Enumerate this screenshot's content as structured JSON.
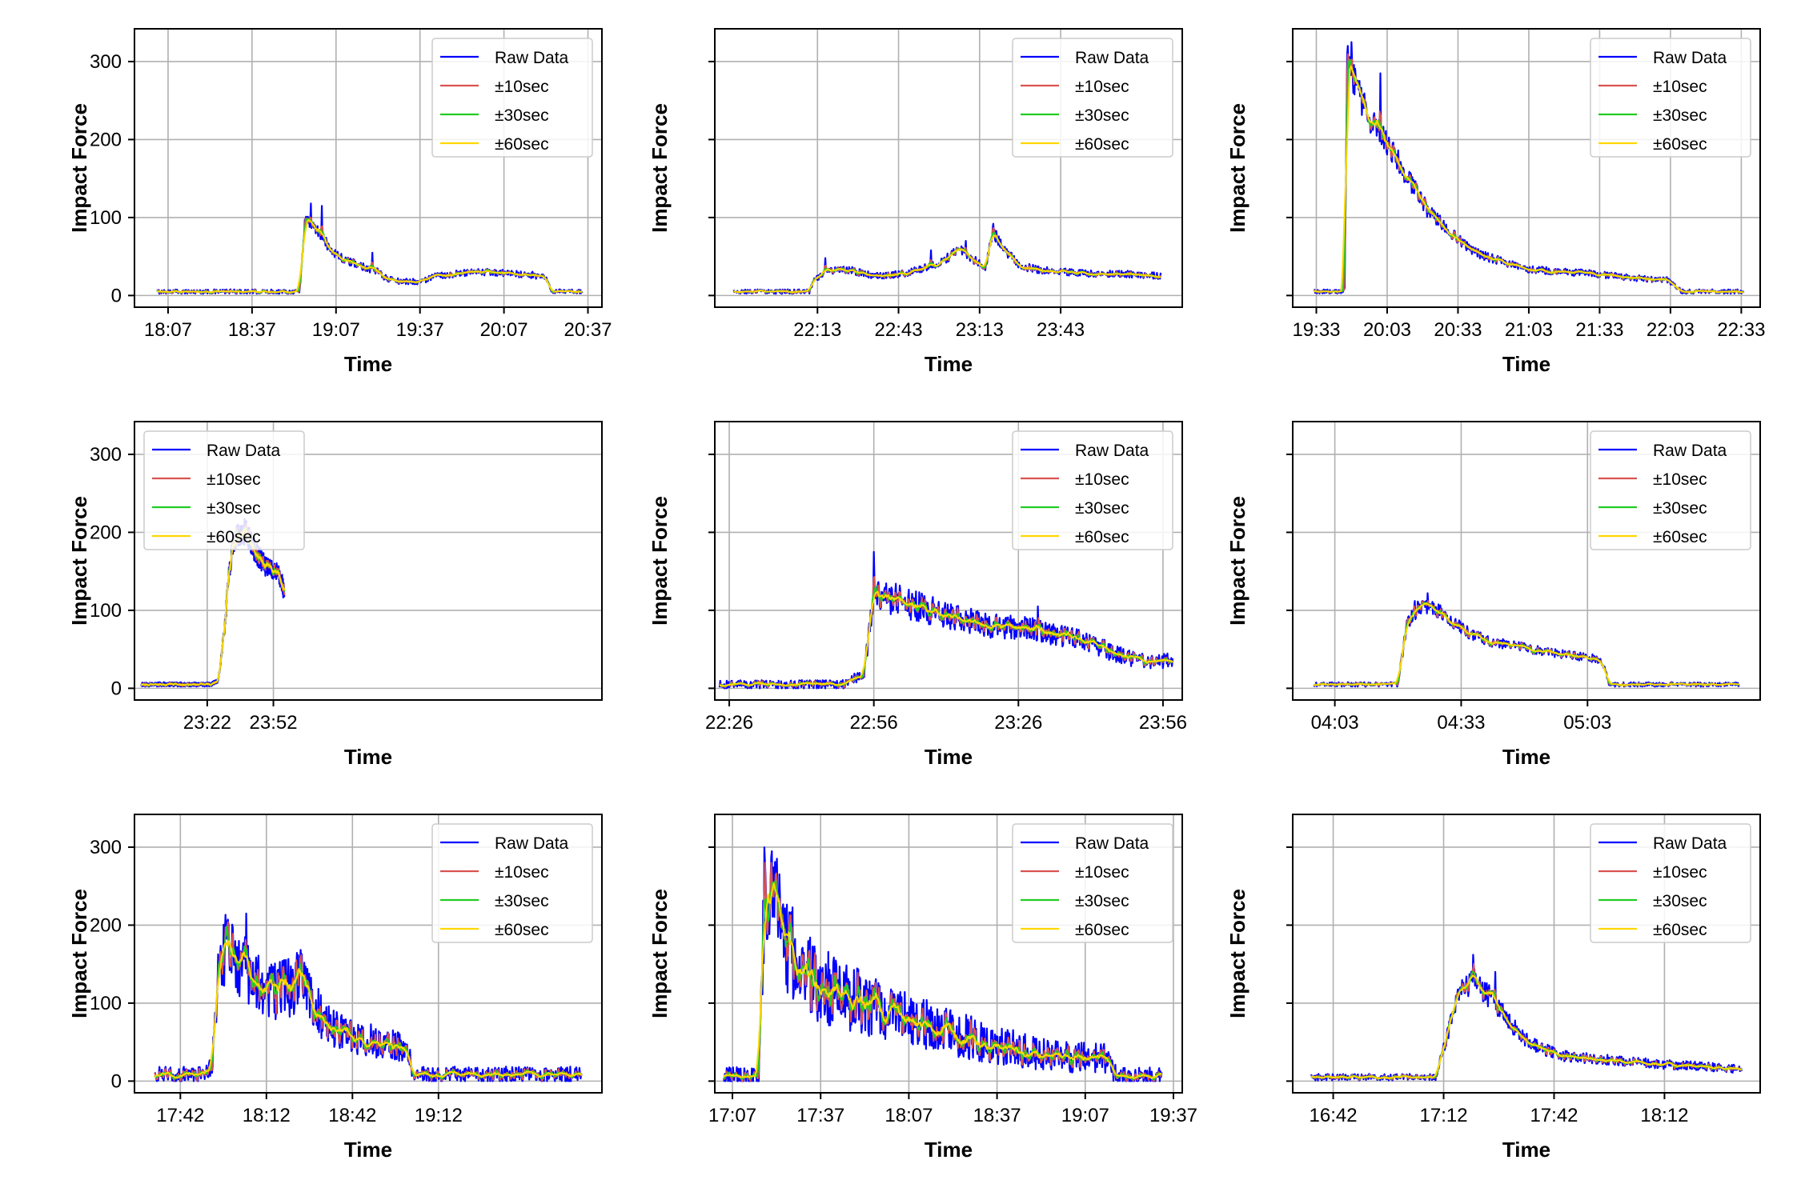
{
  "colors": {
    "raw": "#0000ff",
    "s10": "#d9534f",
    "s30": "#22cc22",
    "s60": "#ffd700",
    "grid": "#b0b0b0",
    "axis": "#000000"
  },
  "legend_labels": [
    "Raw Data",
    "±10sec",
    "±30sec",
    "±60sec"
  ],
  "chart_data": [
    {
      "type": "line",
      "xlabel": "Time",
      "ylabel": "Impact Force",
      "xlim": [
        1075,
        1242
      ],
      "ylim": [
        -15,
        342
      ],
      "xticks": [
        1087,
        1117,
        1147,
        1177,
        1207,
        1237
      ],
      "xtick_labels": [
        "18:07",
        "18:37",
        "19:07",
        "19:37",
        "20:07",
        "20:37"
      ],
      "yticks": [
        0,
        100,
        200,
        300
      ],
      "ytick_labels": [
        "0",
        "100",
        "200",
        "300"
      ],
      "show_yticklabels": true,
      "legend_loc": "upper right",
      "x_start": 1083,
      "x_end": 1235,
      "noise_scale": 1.0,
      "profile": [
        [
          1083,
          5
        ],
        [
          1134,
          5
        ],
        [
          1136,
          100
        ],
        [
          1140,
          85
        ],
        [
          1145,
          60
        ],
        [
          1150,
          45
        ],
        [
          1158,
          36
        ],
        [
          1162,
          30
        ],
        [
          1165,
          22
        ],
        [
          1170,
          18
        ],
        [
          1177,
          18
        ],
        [
          1183,
          25
        ],
        [
          1190,
          28
        ],
        [
          1200,
          30
        ],
        [
          1210,
          28
        ],
        [
          1218,
          26
        ],
        [
          1222,
          22
        ],
        [
          1224,
          5
        ],
        [
          1235,
          5
        ]
      ],
      "spikes": [
        [
          1138,
          118
        ],
        [
          1142,
          115
        ],
        [
          1160,
          55
        ]
      ]
    },
    {
      "type": "line",
      "xlabel": "Time",
      "ylabel": "Impact Force",
      "xlim": [
        1295,
        1468
      ],
      "ylim": [
        -15,
        342
      ],
      "xticks": [
        1333,
        1363,
        1393,
        1423
      ],
      "xtick_labels": [
        "22:13",
        "22:43",
        "23:13",
        "23:43"
      ],
      "yticks": [
        0,
        100,
        200,
        300
      ],
      "ytick_labels": [
        "0",
        "100",
        "200",
        "300"
      ],
      "show_yticklabels": false,
      "legend_loc": "upper right",
      "x_start": 1302,
      "x_end": 1460,
      "noise_scale": 1.0,
      "profile": [
        [
          1302,
          5
        ],
        [
          1330,
          5
        ],
        [
          1332,
          20
        ],
        [
          1336,
          32
        ],
        [
          1345,
          33
        ],
        [
          1350,
          28
        ],
        [
          1355,
          25
        ],
        [
          1365,
          28
        ],
        [
          1370,
          33
        ],
        [
          1375,
          38
        ],
        [
          1380,
          45
        ],
        [
          1385,
          60
        ],
        [
          1390,
          48
        ],
        [
          1395,
          35
        ],
        [
          1398,
          82
        ],
        [
          1402,
          60
        ],
        [
          1408,
          38
        ],
        [
          1415,
          33
        ],
        [
          1425,
          30
        ],
        [
          1435,
          28
        ],
        [
          1445,
          28
        ],
        [
          1460,
          25
        ]
      ],
      "spikes": [
        [
          1336,
          48
        ],
        [
          1388,
          70
        ],
        [
          1398,
          92
        ],
        [
          1375,
          58
        ]
      ]
    },
    {
      "type": "line",
      "xlabel": "Time",
      "ylabel": "Impact Force",
      "xlim": [
        1163,
        1361
      ],
      "ylim": [
        -15,
        342
      ],
      "xticks": [
        1173,
        1203,
        1233,
        1263,
        1293,
        1323,
        1353
      ],
      "xtick_labels": [
        "19:33",
        "20:03",
        "20:33",
        "21:03",
        "21:33",
        "22:03",
        "22:33"
      ],
      "yticks": [
        0,
        100,
        200,
        300
      ],
      "ytick_labels": [
        "0",
        "100",
        "200",
        "300"
      ],
      "show_yticklabels": false,
      "legend_loc": "upper right",
      "x_start": 1172,
      "x_end": 1354,
      "noise_scale": 1.0,
      "profile": [
        [
          1172,
          5
        ],
        [
          1185,
          5
        ],
        [
          1186,
          300
        ],
        [
          1190,
          265
        ],
        [
          1195,
          230
        ],
        [
          1200,
          210
        ],
        [
          1205,
          185
        ],
        [
          1210,
          160
        ],
        [
          1215,
          135
        ],
        [
          1220,
          110
        ],
        [
          1225,
          95
        ],
        [
          1230,
          80
        ],
        [
          1240,
          55
        ],
        [
          1250,
          45
        ],
        [
          1260,
          35
        ],
        [
          1270,
          32
        ],
        [
          1280,
          30
        ],
        [
          1290,
          28
        ],
        [
          1300,
          25
        ],
        [
          1310,
          22
        ],
        [
          1322,
          20
        ],
        [
          1328,
          5
        ],
        [
          1354,
          5
        ]
      ],
      "spikes": [
        [
          1188,
          325
        ],
        [
          1200,
          285
        ],
        [
          1194,
          248
        ]
      ]
    },
    {
      "type": "line",
      "xlabel": "Time",
      "ylabel": "Impact Force",
      "xlim": [
        1369,
        1581
      ],
      "ylim": [
        -15,
        342
      ],
      "xticks": [
        1402,
        1432
      ],
      "xtick_labels": [
        "23:22",
        "23:52"
      ],
      "yticks": [
        0,
        100,
        200,
        300
      ],
      "ytick_labels": [
        "0",
        "100",
        "200",
        "300"
      ],
      "show_yticklabels": true,
      "legend_loc": "upper left",
      "x_start": 1372,
      "x_end": 1437,
      "noise_scale": 1.0,
      "profile": [
        [
          1372,
          5
        ],
        [
          1404,
          5
        ],
        [
          1407,
          10
        ],
        [
          1410,
          80
        ],
        [
          1412,
          150
        ],
        [
          1414,
          190
        ],
        [
          1416,
          195
        ],
        [
          1418,
          200
        ],
        [
          1420,
          200
        ],
        [
          1422,
          185
        ],
        [
          1425,
          170
        ],
        [
          1428,
          158
        ],
        [
          1431,
          152
        ],
        [
          1434,
          148
        ],
        [
          1436,
          135
        ],
        [
          1437,
          118
        ]
      ],
      "spikes": [
        [
          1419,
          217
        ],
        [
          1416,
          210
        ],
        [
          1435,
          148
        ]
      ]
    },
    {
      "type": "line",
      "xlabel": "Time",
      "ylabel": "Impact Force",
      "xlim": [
        1343,
        1440
      ],
      "ylim": [
        -15,
        342
      ],
      "xticks": [
        1346,
        1376,
        1406,
        1436
      ],
      "xtick_labels": [
        "22:26",
        "22:56",
        "23:26",
        "23:56"
      ],
      "yticks": [
        0,
        100,
        200,
        300
      ],
      "ytick_labels": [
        "0",
        "100",
        "200",
        "300"
      ],
      "show_yticklabels": false,
      "legend_loc": "upper right",
      "x_start": 1344,
      "x_end": 1438,
      "noise_scale": 2.0,
      "profile": [
        [
          1344,
          5
        ],
        [
          1370,
          5
        ],
        [
          1374,
          20
        ],
        [
          1376,
          120
        ],
        [
          1380,
          115
        ],
        [
          1390,
          95
        ],
        [
          1400,
          80
        ],
        [
          1410,
          75
        ],
        [
          1420,
          60
        ],
        [
          1428,
          40
        ],
        [
          1432,
          35
        ],
        [
          1438,
          35
        ]
      ],
      "spikes": [
        [
          1376,
          175
        ],
        [
          1410,
          105
        ]
      ]
    },
    {
      "type": "line",
      "xlabel": "Time",
      "ylabel": "Impact Force",
      "xlim": [
        233,
        344
      ],
      "ylim": [
        -15,
        342
      ],
      "xticks": [
        243,
        273,
        303
      ],
      "xtick_labels": [
        "04:03",
        "04:33",
        "05:03"
      ],
      "yticks": [
        0,
        100,
        200,
        300
      ],
      "ytick_labels": [
        "0",
        "100",
        "200",
        "300"
      ],
      "show_yticklabels": false,
      "legend_loc": "upper right",
      "x_start": 238,
      "x_end": 339,
      "noise_scale": 1.0,
      "profile": [
        [
          238,
          5
        ],
        [
          258,
          5
        ],
        [
          260,
          80
        ],
        [
          263,
          105
        ],
        [
          266,
          105
        ],
        [
          270,
          90
        ],
        [
          275,
          70
        ],
        [
          280,
          60
        ],
        [
          285,
          55
        ],
        [
          295,
          45
        ],
        [
          305,
          38
        ],
        [
          307,
          30
        ],
        [
          308,
          5
        ],
        [
          339,
          5
        ]
      ],
      "spikes": [
        [
          265,
          122
        ],
        [
          262,
          112
        ]
      ]
    },
    {
      "type": "line",
      "xlabel": "Time",
      "ylabel": "Impact Force",
      "xlim": [
        1046,
        1209
      ],
      "ylim": [
        -15,
        342
      ],
      "xticks": [
        1062,
        1092,
        1122,
        1152
      ],
      "xtick_labels": [
        "17:42",
        "18:12",
        "18:42",
        "19:12"
      ],
      "yticks": [
        0,
        100,
        200,
        300
      ],
      "ytick_labels": [
        "0",
        "100",
        "200",
        "300"
      ],
      "show_yticklabels": true,
      "legend_loc": "upper right",
      "x_start": 1053,
      "x_end": 1202,
      "noise_scale": 3.5,
      "profile": [
        [
          1053,
          8
        ],
        [
          1070,
          8
        ],
        [
          1073,
          18
        ],
        [
          1076,
          175
        ],
        [
          1080,
          160
        ],
        [
          1085,
          140
        ],
        [
          1090,
          120
        ],
        [
          1095,
          115
        ],
        [
          1100,
          120
        ],
        [
          1104,
          130
        ],
        [
          1108,
          105
        ],
        [
          1112,
          75
        ],
        [
          1116,
          65
        ],
        [
          1125,
          55
        ],
        [
          1132,
          50
        ],
        [
          1138,
          45
        ],
        [
          1142,
          30
        ],
        [
          1143,
          8
        ],
        [
          1202,
          8
        ]
      ],
      "spikes": [
        [
          1085,
          215
        ],
        [
          1078,
          190
        ]
      ]
    },
    {
      "type": "line",
      "xlabel": "Time",
      "ylabel": "Impact Force",
      "xlim": [
        1021,
        1180
      ],
      "ylim": [
        -15,
        342
      ],
      "xticks": [
        1027,
        1057,
        1087,
        1117,
        1147,
        1177
      ],
      "xtick_labels": [
        "17:07",
        "17:37",
        "18:07",
        "18:37",
        "19:07",
        "19:37"
      ],
      "yticks": [
        0,
        100,
        200,
        300
      ],
      "ytick_labels": [
        "0",
        "100",
        "200",
        "300"
      ],
      "show_yticklabels": false,
      "legend_loc": "upper right",
      "x_start": 1024,
      "x_end": 1173,
      "noise_scale": 4.5,
      "profile": [
        [
          1024,
          5
        ],
        [
          1036,
          5
        ],
        [
          1038,
          240
        ],
        [
          1042,
          210
        ],
        [
          1048,
          160
        ],
        [
          1055,
          130
        ],
        [
          1065,
          110
        ],
        [
          1075,
          95
        ],
        [
          1085,
          80
        ],
        [
          1095,
          70
        ],
        [
          1105,
          58
        ],
        [
          1115,
          48
        ],
        [
          1125,
          40
        ],
        [
          1135,
          33
        ],
        [
          1145,
          30
        ],
        [
          1155,
          28
        ],
        [
          1158,
          5
        ],
        [
          1173,
          5
        ]
      ],
      "spikes": [
        [
          1038,
          280
        ],
        [
          1040,
          258
        ]
      ]
    },
    {
      "type": "line",
      "xlabel": "Time",
      "ylabel": "Impact Force",
      "xlim": [
        991,
        1118
      ],
      "ylim": [
        -15,
        342
      ],
      "xticks": [
        1002,
        1032,
        1062,
        1092
      ],
      "xtick_labels": [
        "16:42",
        "17:12",
        "17:42",
        "18:12"
      ],
      "yticks": [
        0,
        100,
        200,
        300
      ],
      "ytick_labels": [
        "0",
        "100",
        "200",
        "300"
      ],
      "show_yticklabels": false,
      "legend_loc": "upper right",
      "x_start": 996,
      "x_end": 1113,
      "noise_scale": 1.5,
      "profile": [
        [
          996,
          5
        ],
        [
          1030,
          5
        ],
        [
          1033,
          60
        ],
        [
          1036,
          110
        ],
        [
          1040,
          130
        ],
        [
          1045,
          105
        ],
        [
          1050,
          75
        ],
        [
          1055,
          50
        ],
        [
          1060,
          40
        ],
        [
          1065,
          32
        ],
        [
          1075,
          28
        ],
        [
          1090,
          22
        ],
        [
          1105,
          18
        ],
        [
          1113,
          15
        ]
      ],
      "spikes": [
        [
          1040,
          162
        ],
        [
          1046,
          140
        ]
      ]
    }
  ]
}
